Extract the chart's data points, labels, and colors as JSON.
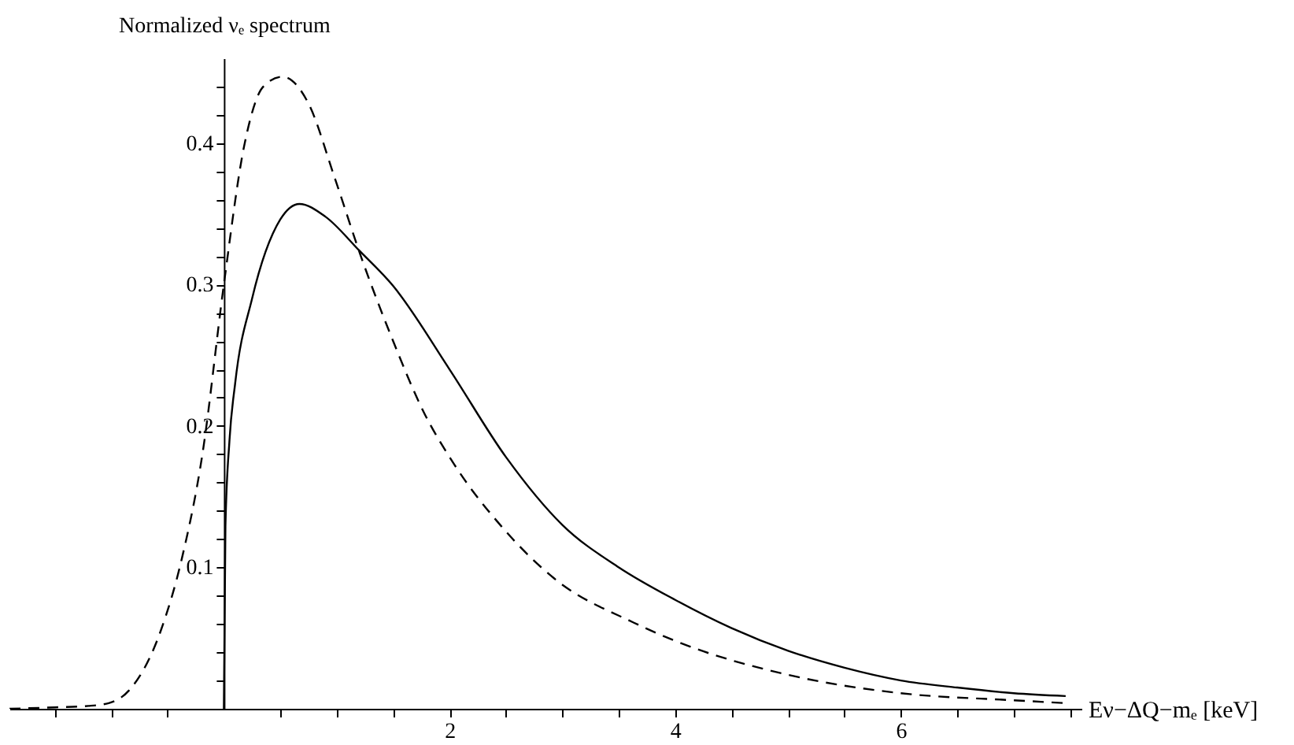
{
  "chart_data": {
    "type": "line",
    "xlabel": "Eν−ΔQ−mₑ [keV]",
    "ylabel": "Normalized νₑ spectrum",
    "xlim": [
      -1.9,
      7.6
    ],
    "ylim": [
      0,
      0.46
    ],
    "xticks": [
      {
        "value": -1.5,
        "label": null
      },
      {
        "value": -1,
        "label": null
      },
      {
        "value": -0.5,
        "label": null
      },
      {
        "value": 0.5,
        "label": null
      },
      {
        "value": 1,
        "label": null
      },
      {
        "value": 1.5,
        "label": null
      },
      2,
      {
        "value": 2.5,
        "label": null
      },
      {
        "value": 3,
        "label": null
      },
      {
        "value": 3.5,
        "label": null
      },
      4,
      {
        "value": 4.5,
        "label": null
      },
      {
        "value": 5,
        "label": null
      },
      {
        "value": 5.5,
        "label": null
      },
      6,
      {
        "value": 6.5,
        "label": null
      },
      {
        "value": 7,
        "label": null
      },
      {
        "value": 7.5,
        "label": null
      }
    ],
    "yticks": [
      {
        "value": 0.02,
        "label": null
      },
      {
        "value": 0.04,
        "label": null
      },
      {
        "value": 0.06,
        "label": null
      },
      {
        "value": 0.08,
        "label": null
      },
      0.1,
      {
        "value": 0.12,
        "label": null
      },
      {
        "value": 0.14,
        "label": null
      },
      {
        "value": 0.16,
        "label": null
      },
      {
        "value": 0.18,
        "label": null
      },
      0.2,
      {
        "value": 0.22,
        "label": null
      },
      {
        "value": 0.24,
        "label": null
      },
      {
        "value": 0.26,
        "label": null
      },
      {
        "value": 0.28,
        "label": null
      },
      0.3,
      {
        "value": 0.32,
        "label": null
      },
      {
        "value": 0.34,
        "label": null
      },
      {
        "value": 0.36,
        "label": null
      },
      {
        "value": 0.38,
        "label": null
      },
      0.4,
      {
        "value": 0.42,
        "label": null
      },
      {
        "value": 0.44,
        "label": null
      }
    ],
    "grid": false,
    "marker": "none",
    "series": [
      {
        "color": "#000000",
        "line_style": "solid",
        "x": [
          0,
          0.014,
          0.05,
          0.1,
          0.25,
          0.5,
          0.67,
          0.9,
          1.2,
          1.5,
          2,
          2.5,
          3,
          3.5,
          4,
          4.5,
          5,
          5.5,
          6,
          6.5,
          7,
          7.46
        ],
        "values": [
          0,
          0.129,
          0.19,
          0.23,
          0.29,
          0.346,
          0.357,
          0.348,
          0.324,
          0.299,
          0.24,
          0.178,
          0.13,
          0.1,
          0.077,
          0.057,
          0.041,
          0.029,
          0.02,
          0.015,
          0.011,
          0.009
        ]
      },
      {
        "color": "#000000",
        "line_style": "dashed",
        "x": [
          -1.9,
          -1.5,
          -1.2,
          -1.02,
          -0.84,
          -0.56,
          -0.37,
          -0.19,
          0,
          0.18,
          0.35,
          0.52,
          0.75,
          0.98,
          1.21,
          1.49,
          1.77,
          2.04,
          2.46,
          2.93,
          3.63,
          4,
          5,
          6,
          7,
          7.46
        ],
        "values": [
          0,
          0.001,
          0.002,
          0.004,
          0.013,
          0.055,
          0.107,
          0.18,
          0.3,
          0.398,
          0.44,
          0.447,
          0.428,
          0.376,
          0.321,
          0.262,
          0.21,
          0.173,
          0.129,
          0.092,
          0.061,
          0.048,
          0.024,
          0.011,
          0.006,
          0.004
        ]
      }
    ]
  }
}
